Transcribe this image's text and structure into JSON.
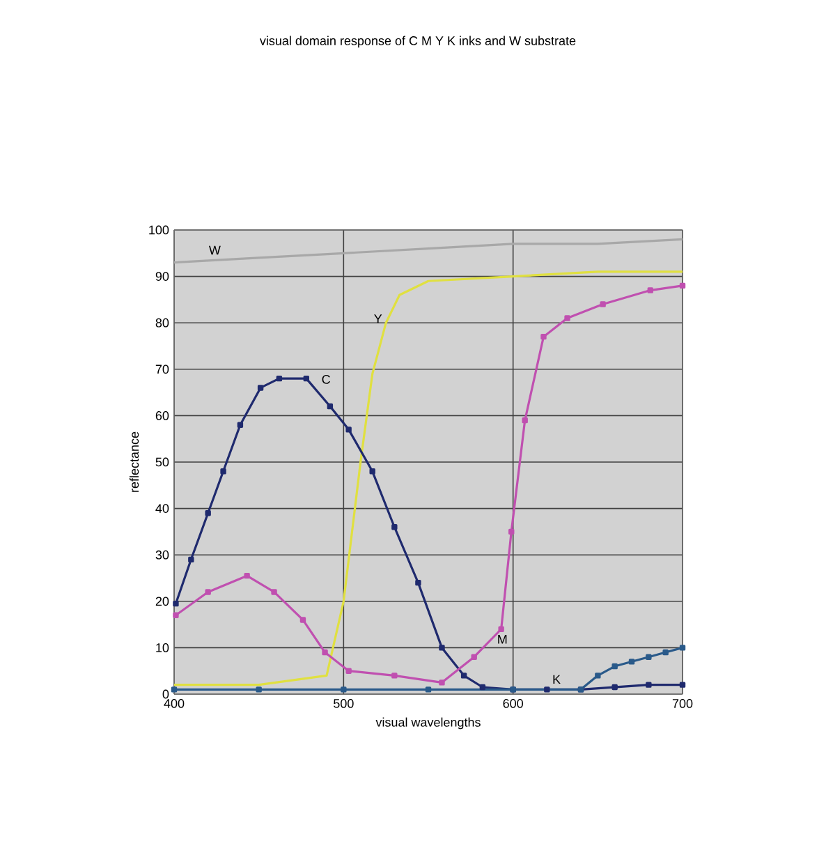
{
  "chart_data": {
    "type": "line",
    "title": "visual domain response of C M Y K inks and W substrate",
    "xlabel": "visual wavelengths",
    "ylabel": "reflectance",
    "xlim": [
      400,
      700
    ],
    "ylim": [
      0,
      100
    ],
    "xticks": [
      400,
      500,
      600,
      700
    ],
    "yticks": [
      0,
      10,
      20,
      30,
      40,
      50,
      60,
      70,
      80,
      90,
      100
    ],
    "grid": true,
    "legend": false,
    "series": [
      {
        "name": "W",
        "color": "#a8a8a8",
        "marker": "none",
        "x": [
          400,
          450,
          500,
          550,
          600,
          650,
          700
        ],
        "values": [
          93,
          94,
          95,
          96,
          97,
          97,
          98
        ]
      },
      {
        "name": "Y",
        "color": "#e0e040",
        "marker": "none",
        "x": [
          400,
          450,
          490,
          500,
          510,
          517,
          525,
          533,
          550,
          600,
          650,
          700
        ],
        "values": [
          2,
          2,
          4,
          20,
          50,
          69,
          80,
          86,
          89,
          90,
          91,
          91
        ]
      },
      {
        "name": "C",
        "color": "#1f2a6e",
        "marker": "square",
        "x": [
          401,
          410,
          420,
          429,
          439,
          451,
          462,
          478,
          492,
          503,
          517,
          530,
          544,
          558,
          571,
          582,
          600,
          620,
          640,
          660,
          680,
          700
        ],
        "values": [
          19.5,
          29,
          39,
          48,
          58,
          66,
          68,
          68,
          62,
          57,
          48,
          36,
          24,
          10,
          4,
          1.5,
          1,
          1,
          1,
          1.5,
          2,
          2
        ]
      },
      {
        "name": "M",
        "color": "#c050b0",
        "marker": "square",
        "x": [
          401,
          420,
          443,
          459,
          476,
          489,
          503,
          530,
          558,
          577,
          593,
          599,
          607,
          618,
          632,
          653,
          681,
          700
        ],
        "values": [
          17,
          22,
          25.5,
          22,
          16,
          9,
          5,
          4,
          2.5,
          8,
          14,
          35,
          59,
          77,
          81,
          84,
          87,
          88
        ]
      },
      {
        "name": "K",
        "color": "#2a5a8a",
        "marker": "square",
        "x": [
          400,
          450,
          500,
          550,
          600,
          640,
          650,
          660,
          670,
          680,
          690,
          700
        ],
        "values": [
          1,
          1,
          1,
          1,
          1,
          1,
          4,
          6,
          7,
          8,
          9,
          10
        ]
      }
    ]
  }
}
